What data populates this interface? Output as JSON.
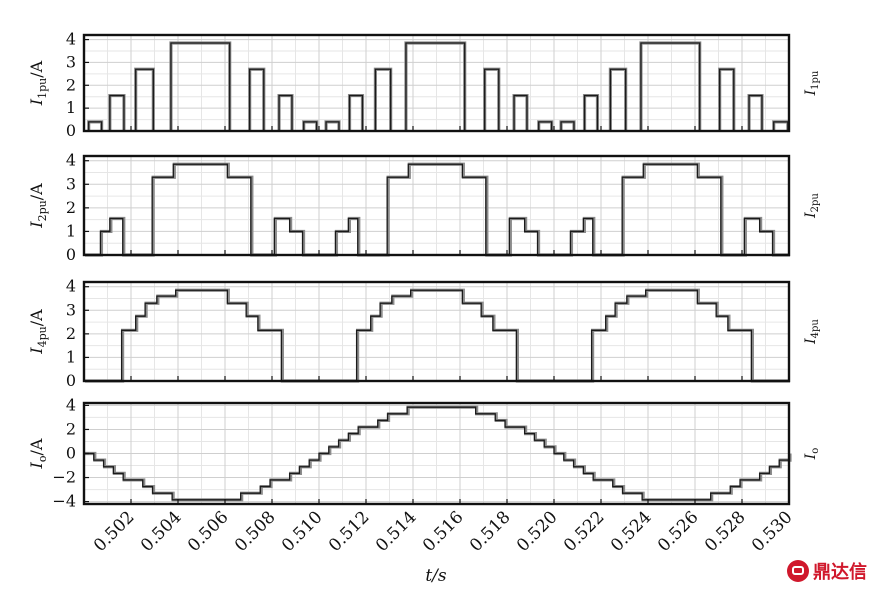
{
  "chart_data": {
    "type": "line",
    "x_unit": "s",
    "xlabel": "t/s",
    "xlim": [
      0.5,
      0.53
    ],
    "xticks": [
      0.502,
      0.504,
      0.506,
      0.508,
      0.51,
      0.512,
      0.514,
      0.516,
      0.518,
      0.52,
      0.522,
      0.524,
      0.526,
      0.528,
      0.53
    ],
    "xtick_labels": [
      "0.502",
      "0.504",
      "0.506",
      "0.508",
      "0.510",
      "0.512",
      "0.514",
      "0.516",
      "0.518",
      "0.520",
      "0.522",
      "0.524",
      "0.526",
      "0.528",
      "0.530"
    ],
    "panels": [
      {
        "id": "i1",
        "ylabel_main": "I",
        "ylabel_sub": "1pu",
        "ylabel_unit": "/A",
        "right_main": "I",
        "right_sub": "1pu",
        "ylim": [
          0,
          4.2
        ],
        "yticks": [
          0,
          1,
          2,
          3,
          4
        ],
        "ytick_labels": [
          "0",
          "1",
          "2",
          "3",
          "4"
        ],
        "style": "pulse",
        "pulses": [
          [
            0.5002,
            0.50075,
            0.4
          ],
          [
            0.5011,
            0.5017,
            1.55
          ],
          [
            0.5022,
            0.50295,
            2.7
          ],
          [
            0.5037,
            0.5062,
            3.85
          ],
          [
            0.50705,
            0.50765,
            2.7
          ],
          [
            0.5083,
            0.50885,
            1.55
          ],
          [
            0.50935,
            0.5099,
            0.4
          ],
          [
            0.5103,
            0.51085,
            0.4
          ],
          [
            0.5113,
            0.51185,
            1.55
          ],
          [
            0.5124,
            0.51305,
            2.7
          ],
          [
            0.5137,
            0.5162,
            3.85
          ],
          [
            0.51705,
            0.51765,
            2.7
          ],
          [
            0.5183,
            0.51885,
            1.55
          ],
          [
            0.51935,
            0.5199,
            0.4
          ],
          [
            0.5203,
            0.52085,
            0.4
          ],
          [
            0.5213,
            0.52185,
            1.55
          ],
          [
            0.5224,
            0.52305,
            2.7
          ],
          [
            0.5237,
            0.5262,
            3.85
          ],
          [
            0.52705,
            0.52765,
            2.7
          ],
          [
            0.5283,
            0.52885,
            1.55
          ],
          [
            0.52935,
            0.52995,
            0.4
          ]
        ]
      },
      {
        "id": "i2",
        "ylabel_main": "I",
        "ylabel_sub": "2pu",
        "ylabel_unit": "/A",
        "right_main": "I",
        "right_sub": "2pu",
        "ylim": [
          0,
          4.2
        ],
        "yticks": [
          0,
          1,
          2,
          3,
          4
        ],
        "ytick_labels": [
          "0",
          "1",
          "2",
          "3",
          "4"
        ],
        "style": "step",
        "x": [
          0.5,
          0.5007,
          0.5011,
          0.50165,
          0.5029,
          0.5038,
          0.5061,
          0.5071,
          0.5081,
          0.50835,
          0.50875,
          0.5093,
          0.5107,
          0.51125,
          0.51165,
          0.5129,
          0.5138,
          0.5161,
          0.5171,
          0.5181,
          0.51835,
          0.51875,
          0.5193,
          0.5207,
          0.52125,
          0.52165,
          0.5229,
          0.5238,
          0.5261,
          0.5271,
          0.5281,
          0.52835,
          0.52875,
          0.5293
        ],
        "y": [
          0,
          1.0,
          1.55,
          0,
          3.3,
          3.85,
          3.3,
          0,
          1.55,
          1.55,
          1.0,
          0,
          1.0,
          1.55,
          0,
          3.3,
          3.85,
          3.3,
          0,
          1.55,
          1.55,
          1.0,
          0,
          1.0,
          1.55,
          0,
          3.3,
          3.85,
          3.3,
          0,
          1.55,
          1.55,
          1.0,
          0
        ]
      },
      {
        "id": "i4",
        "ylabel_main": "I",
        "ylabel_sub": "4pu",
        "ylabel_unit": "/A",
        "right_main": "I",
        "right_sub": "4pu",
        "ylim": [
          0,
          4.2
        ],
        "yticks": [
          0,
          1,
          2,
          3,
          4
        ],
        "ytick_labels": [
          "0",
          "1",
          "2",
          "3",
          "4"
        ],
        "style": "step",
        "x": [
          0.5,
          0.5016,
          0.5022,
          0.5026,
          0.5031,
          0.5039,
          0.5061,
          0.5069,
          0.5074,
          0.5078,
          0.5084,
          0.5116,
          0.5122,
          0.5126,
          0.5131,
          0.5139,
          0.5161,
          0.5169,
          0.5174,
          0.5178,
          0.5184,
          0.5216,
          0.5222,
          0.5226,
          0.5231,
          0.5239,
          0.5261,
          0.5269,
          0.5274,
          0.5278,
          0.5284
        ],
        "y": [
          0,
          2.15,
          2.75,
          3.3,
          3.6,
          3.85,
          3.3,
          2.75,
          2.15,
          2.15,
          0,
          2.15,
          2.75,
          3.3,
          3.6,
          3.85,
          3.3,
          2.75,
          2.15,
          2.15,
          0,
          2.15,
          2.75,
          3.3,
          3.6,
          3.85,
          3.3,
          2.75,
          2.15,
          2.15,
          0
        ]
      },
      {
        "id": "io",
        "ylabel_main": "I",
        "ylabel_sub": "o",
        "ylabel_unit": "/A",
        "right_main": "I",
        "right_sub": "o",
        "ylim": [
          -4.2,
          4.2
        ],
        "yticks": [
          -4,
          -2,
          0,
          2,
          4
        ],
        "ytick_labels": [
          "−4",
          "−2",
          "0",
          "2",
          "4"
        ],
        "style": "sinestep",
        "period": 0.02,
        "amplitude": 4.0,
        "phase_zero": 0.5,
        "steps_per_period": 48,
        "clip": 3.9
      }
    ]
  }
}
